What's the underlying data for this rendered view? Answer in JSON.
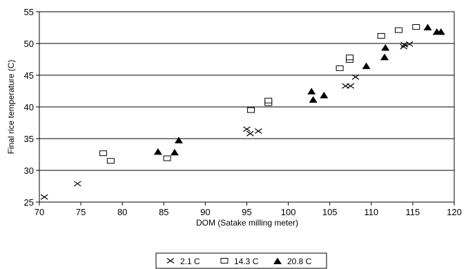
{
  "chart_data": {
    "type": "scatter",
    "title": "",
    "xlabel": "DOM (Satake milling meter)",
    "ylabel": "Final rice temperature (C)",
    "xlim": [
      70,
      120
    ],
    "ylim": [
      25,
      55
    ],
    "x_ticks": [
      70,
      75,
      80,
      85,
      90,
      95,
      100,
      105,
      110,
      115,
      120
    ],
    "y_ticks": [
      25,
      30,
      35,
      40,
      45,
      50,
      55
    ],
    "grid": "horizontal",
    "legend_position": "bottom-center",
    "series": [
      {
        "name": "2.1 C",
        "marker": "x",
        "points": [
          [
            70.6,
            25.8
          ],
          [
            74.6,
            27.9
          ],
          [
            95.0,
            36.5
          ],
          [
            95.4,
            35.8
          ],
          [
            96.4,
            36.2
          ],
          [
            106.9,
            43.3
          ],
          [
            107.5,
            43.3
          ],
          [
            108.1,
            44.7
          ],
          [
            113.9,
            49.5
          ],
          [
            114.0,
            49.8
          ],
          [
            114.6,
            49.9
          ]
        ]
      },
      {
        "name": "14.3 C",
        "marker": "square",
        "points": [
          [
            77.7,
            32.7
          ],
          [
            78.6,
            31.5
          ],
          [
            85.4,
            31.9
          ],
          [
            95.5,
            39.5
          ],
          [
            97.6,
            40.6
          ],
          [
            97.6,
            41.0
          ],
          [
            106.2,
            46.1
          ],
          [
            107.4,
            47.4
          ],
          [
            107.4,
            47.8
          ],
          [
            111.2,
            51.2
          ],
          [
            113.3,
            52.1
          ],
          [
            115.4,
            52.6
          ]
        ]
      },
      {
        "name": "20.8 C",
        "marker": "triangle",
        "points": [
          [
            84.3,
            32.9
          ],
          [
            86.3,
            32.8
          ],
          [
            86.8,
            34.7
          ],
          [
            102.8,
            42.4
          ],
          [
            103.0,
            41.1
          ],
          [
            104.3,
            41.8
          ],
          [
            109.4,
            46.4
          ],
          [
            111.6,
            47.8
          ],
          [
            111.7,
            49.3
          ],
          [
            116.8,
            52.5
          ],
          [
            117.9,
            51.8
          ],
          [
            118.4,
            51.8
          ]
        ]
      }
    ]
  }
}
